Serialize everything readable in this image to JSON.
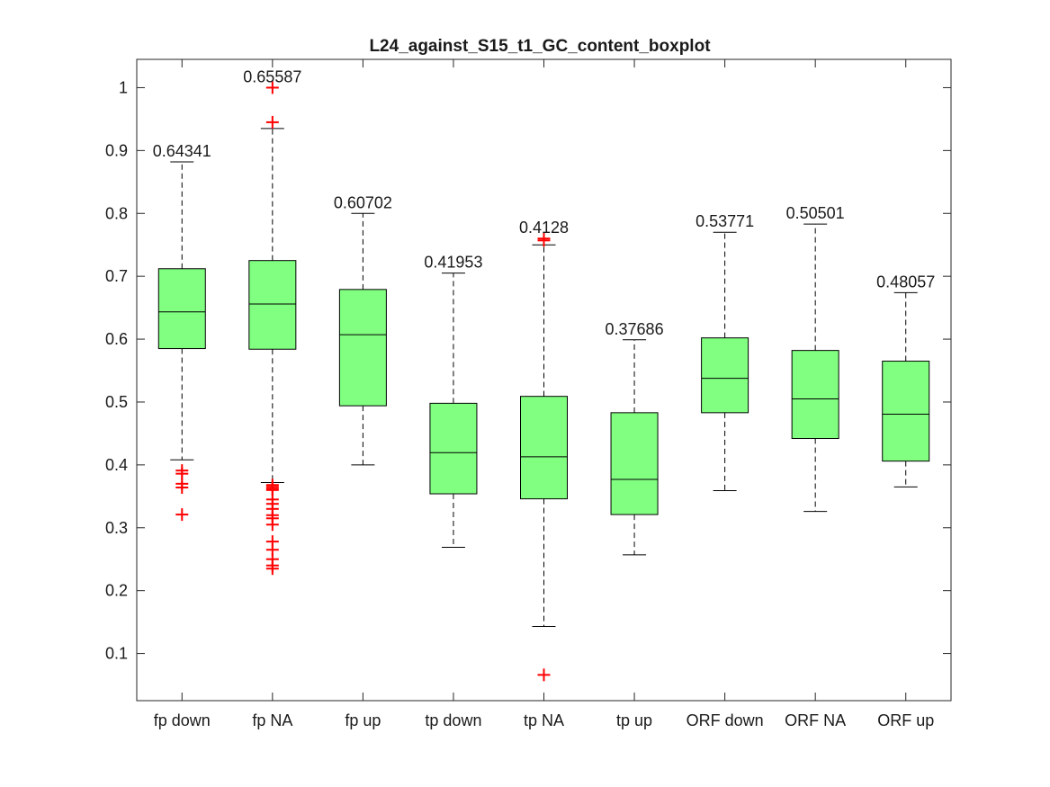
{
  "chart_data": {
    "type": "boxplot",
    "title": "L24_against_S15_t1_GC_content_boxplot",
    "xlabel": "",
    "ylabel": "",
    "ylim": [
      0.025,
      1.045
    ],
    "yticks": [
      0.1,
      0.2,
      0.3,
      0.4,
      0.5,
      0.6,
      0.7,
      0.8,
      0.9,
      1
    ],
    "ytick_labels": [
      "0.1",
      "0.2",
      "0.3",
      "0.4",
      "0.5",
      "0.6",
      "0.7",
      "0.8",
      "0.9",
      "1"
    ],
    "grid": false,
    "colors": {
      "box_fill": "#80ff80",
      "outlier": "#ff0000",
      "line": "#000000"
    },
    "categories": [
      "fp down",
      "fp NA",
      "fp up",
      "tp down",
      "tp NA",
      "tp up",
      "ORF down",
      "ORF NA",
      "ORF up"
    ],
    "boxes": [
      {
        "category": "fp down",
        "whisker_low": 0.408,
        "q1": 0.585,
        "median": 0.64341,
        "q3": 0.712,
        "whisker_high": 0.882,
        "median_label": "0.64341",
        "outliers": [
          0.391,
          0.386,
          0.37,
          0.364,
          0.321
        ]
      },
      {
        "category": "fp NA",
        "whisker_low": 0.372,
        "q1": 0.584,
        "median": 0.65587,
        "q3": 0.725,
        "whisker_high": 0.935,
        "median_label": "0.65587",
        "outliers": [
          1.0,
          0.945,
          0.368,
          0.365,
          0.362,
          0.36,
          0.345,
          0.338,
          0.33,
          0.32,
          0.315,
          0.305,
          0.278,
          0.265,
          0.25,
          0.24,
          0.235
        ]
      },
      {
        "category": "fp up",
        "whisker_low": 0.4,
        "q1": 0.494,
        "median": 0.60702,
        "q3": 0.679,
        "whisker_high": 0.8,
        "median_label": "0.60702",
        "outliers": []
      },
      {
        "category": "tp down",
        "whisker_low": 0.269,
        "q1": 0.354,
        "median": 0.41953,
        "q3": 0.498,
        "whisker_high": 0.705,
        "median_label": "0.41953",
        "outliers": []
      },
      {
        "category": "tp NA",
        "whisker_low": 0.143,
        "q1": 0.346,
        "median": 0.4128,
        "q3": 0.509,
        "whisker_high": 0.75,
        "median_label": "0.4128",
        "outliers": [
          0.76,
          0.757,
          0.066
        ]
      },
      {
        "category": "tp up",
        "whisker_low": 0.257,
        "q1": 0.321,
        "median": 0.37686,
        "q3": 0.483,
        "whisker_high": 0.599,
        "median_label": "0.37686",
        "outliers": []
      },
      {
        "category": "ORF down",
        "whisker_low": 0.359,
        "q1": 0.483,
        "median": 0.53771,
        "q3": 0.602,
        "whisker_high": 0.77,
        "median_label": "0.53771",
        "outliers": []
      },
      {
        "category": "ORF NA",
        "whisker_low": 0.326,
        "q1": 0.442,
        "median": 0.50501,
        "q3": 0.582,
        "whisker_high": 0.783,
        "median_label": "0.50501",
        "outliers": []
      },
      {
        "category": "ORF up",
        "whisker_low": 0.365,
        "q1": 0.406,
        "median": 0.48057,
        "q3": 0.565,
        "whisker_high": 0.674,
        "median_label": "0.48057",
        "outliers": []
      }
    ]
  }
}
